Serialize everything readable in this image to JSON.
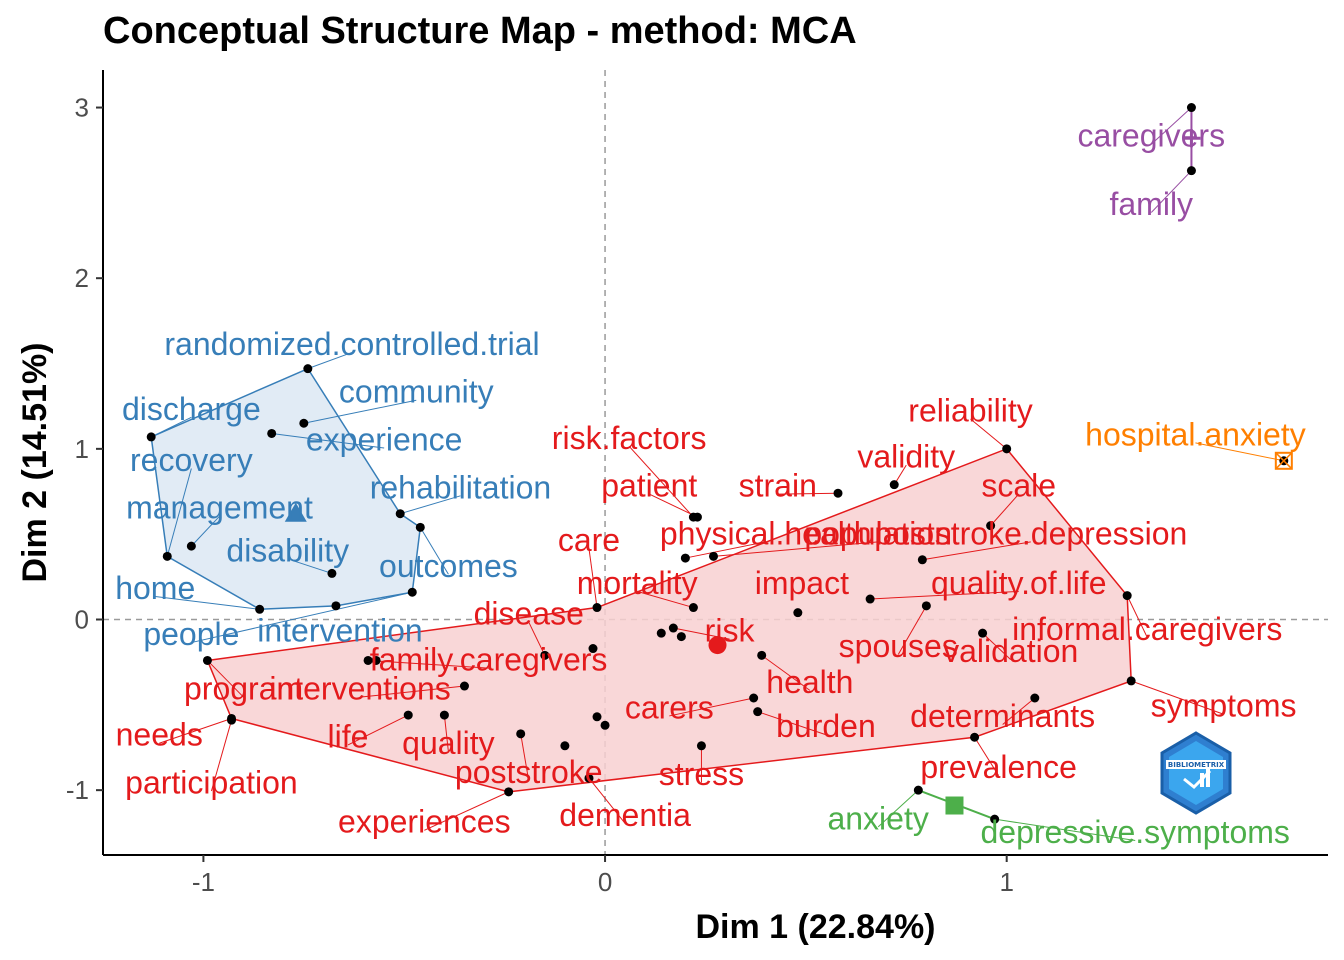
{
  "chart_data": {
    "type": "scatter",
    "title": "Conceptual Structure Map - method: MCA",
    "xlabel": "Dim 1 (22.84%)",
    "ylabel": "Dim 2 (14.51%)",
    "xlim": [
      -1.25,
      1.8
    ],
    "ylim": [
      -1.38,
      3.22
    ],
    "xticks": [
      -1,
      0,
      1
    ],
    "yticks": [
      -1,
      0,
      1,
      2,
      3
    ],
    "grid": false,
    "reference_lines": {
      "x": 0,
      "y": 0,
      "style": "dashed"
    },
    "clusters": [
      {
        "id": "blue",
        "color": "#377EB8",
        "fill": "#DCE8F3",
        "centroid": [
          -0.77,
          0.62
        ],
        "centroid_shape": "triangle",
        "hull": [
          [
            -0.74,
            1.47
          ],
          [
            -1.13,
            1.07
          ],
          [
            -1.09,
            0.37
          ],
          [
            -0.86,
            0.06
          ],
          [
            -0.67,
            0.08
          ],
          [
            -0.48,
            0.16
          ],
          [
            -0.46,
            0.54
          ],
          [
            -0.51,
            0.62
          ]
        ],
        "points": [
          {
            "x": -0.74,
            "y": 1.47,
            "label": "randomized.controlled.trial",
            "lx": -0.63,
            "ly": 1.6
          },
          {
            "x": -0.75,
            "y": 1.15,
            "label": "community",
            "lx": -0.47,
            "ly": 1.32
          },
          {
            "x": -1.13,
            "y": 1.07,
            "label": "discharge",
            "lx": -1.03,
            "ly": 1.22
          },
          {
            "x": -0.83,
            "y": 1.09,
            "label": "experience",
            "lx": -0.55,
            "ly": 1.04
          },
          {
            "x": -1.09,
            "y": 0.37,
            "label": "recovery",
            "lx": -1.03,
            "ly": 0.92
          },
          {
            "x": -0.51,
            "y": 0.62,
            "label": "rehabilitation",
            "lx": -0.36,
            "ly": 0.76
          },
          {
            "x": -1.03,
            "y": 0.43,
            "label": "management",
            "lx": -0.96,
            "ly": 0.64
          },
          {
            "x": -0.68,
            "y": 0.27,
            "label": "disability",
            "lx": -0.79,
            "ly": 0.39
          },
          {
            "x": -0.46,
            "y": 0.54,
            "label": "outcomes",
            "lx": -0.39,
            "ly": 0.3
          },
          {
            "x": -0.86,
            "y": 0.06,
            "label": "home",
            "lx": -1.12,
            "ly": 0.17
          },
          {
            "x": -0.67,
            "y": 0.08,
            "label": "intervention",
            "lx": -0.66,
            "ly": -0.08
          },
          {
            "x": -0.48,
            "y": 0.16,
            "label": "people",
            "lx": -1.03,
            "ly": -0.1
          }
        ]
      },
      {
        "id": "red",
        "color": "#E41A1C",
        "fill": "#F8D0D1",
        "centroid": [
          0.28,
          -0.15
        ],
        "centroid_shape": "circle",
        "hull": [
          [
            1.0,
            1.0
          ],
          [
            1.3,
            0.14
          ],
          [
            1.31,
            -0.36
          ],
          [
            0.92,
            -0.69
          ],
          [
            -0.24,
            -1.01
          ],
          [
            -0.93,
            -0.58
          ],
          [
            -0.99,
            -0.24
          ],
          [
            -0.02,
            0.07
          ]
        ],
        "points": [
          {
            "x": 1.0,
            "y": 1.0,
            "label": "reliability",
            "lx": 0.91,
            "ly": 1.21
          },
          {
            "x": 0.72,
            "y": 0.79,
            "label": "validity",
            "lx": 0.75,
            "ly": 0.94
          },
          {
            "x": 0.58,
            "y": 0.74,
            "label": "strain",
            "lx": 0.43,
            "ly": 0.77
          },
          {
            "x": 0.96,
            "y": 0.55,
            "label": "scale",
            "lx": 1.03,
            "ly": 0.77
          },
          {
            "x": 0.22,
            "y": 0.6,
            "label": "risk.factors",
            "lx": 0.06,
            "ly": 1.05
          },
          {
            "x": 0.23,
            "y": 0.6,
            "label": "patient",
            "lx": 0.11,
            "ly": 0.77
          },
          {
            "x": 0.2,
            "y": 0.36,
            "label": "physical.health",
            "lx": 0.4,
            "ly": 0.49
          },
          {
            "x": 0.27,
            "y": 0.37,
            "label": "population",
            "lx": 0.68,
            "ly": 0.49
          },
          {
            "x": 0.79,
            "y": 0.35,
            "label": "poststroke.depression",
            "lx": 1.06,
            "ly": 0.49
          },
          {
            "x": -0.02,
            "y": 0.07,
            "label": "care",
            "lx": -0.04,
            "ly": 0.45
          },
          {
            "x": 0.22,
            "y": 0.07,
            "label": "mortality",
            "lx": 0.08,
            "ly": 0.2
          },
          {
            "x": 0.48,
            "y": 0.04,
            "label": "impact",
            "lx": 0.49,
            "ly": 0.2
          },
          {
            "x": 0.66,
            "y": 0.12,
            "label": "quality.of.life",
            "lx": 1.03,
            "ly": 0.2
          },
          {
            "x": 0.8,
            "y": 0.08,
            "label": "spouses",
            "lx": 0.73,
            "ly": -0.17
          },
          {
            "x": 0.94,
            "y": -0.08,
            "label": "validation",
            "lx": 1.01,
            "ly": -0.2
          },
          {
            "x": 1.3,
            "y": 0.14,
            "label": "informal.caregivers",
            "lx": 1.35,
            "ly": -0.07
          },
          {
            "x": -0.15,
            "y": -0.21,
            "label": "disease",
            "lx": -0.19,
            "ly": 0.02
          },
          {
            "x": 0.17,
            "y": -0.05,
            "label": "risk",
            "lx": 0.31,
            "ly": -0.08
          },
          {
            "x": -0.59,
            "y": -0.24,
            "label": "family.caregivers",
            "lx": -0.29,
            "ly": -0.25
          },
          {
            "x": 0.39,
            "y": -0.21,
            "label": "health",
            "lx": 0.51,
            "ly": -0.38
          },
          {
            "x": -0.99,
            "y": -0.24,
            "label": "program",
            "lx": -0.9,
            "ly": -0.42
          },
          {
            "x": -0.35,
            "y": -0.39,
            "label": "interventions",
            "lx": -0.61,
            "ly": -0.42
          },
          {
            "x": 0.37,
            "y": -0.46,
            "label": "carers",
            "lx": 0.16,
            "ly": -0.53
          },
          {
            "x": 1.07,
            "y": -0.46,
            "label": "determinants",
            "lx": 0.99,
            "ly": -0.58
          },
          {
            "x": 1.31,
            "y": -0.36,
            "label": "symptoms",
            "lx": 1.54,
            "ly": -0.52
          },
          {
            "x": -0.93,
            "y": -0.58,
            "label": "needs",
            "lx": -1.11,
            "ly": -0.69
          },
          {
            "x": -0.49,
            "y": -0.56,
            "label": "life",
            "lx": -0.64,
            "ly": -0.7
          },
          {
            "x": -0.4,
            "y": -0.56,
            "label": "quality",
            "lx": -0.39,
            "ly": -0.74
          },
          {
            "x": 0.38,
            "y": -0.54,
            "label": "burden",
            "lx": 0.55,
            "ly": -0.64
          },
          {
            "x": 0.92,
            "y": -0.69,
            "label": "prevalence",
            "lx": 0.98,
            "ly": -0.88
          },
          {
            "x": -0.93,
            "y": -0.59,
            "label": "participation",
            "lx": -0.98,
            "ly": -0.97
          },
          {
            "x": -0.21,
            "y": -0.67,
            "label": "poststroke",
            "lx": -0.19,
            "ly": -0.91
          },
          {
            "x": 0.24,
            "y": -0.74,
            "label": "stress",
            "lx": 0.24,
            "ly": -0.92
          },
          {
            "x": -0.24,
            "y": -1.01,
            "label": "experiences",
            "lx": -0.45,
            "ly": -1.2
          },
          {
            "x": -0.04,
            "y": -0.93,
            "label": "dementia",
            "lx": 0.05,
            "ly": -1.16
          },
          {
            "x": -0.1,
            "y": -0.74,
            "label": "",
            "lx": null,
            "ly": null
          },
          {
            "x": -0.02,
            "y": -0.57,
            "label": "",
            "lx": null,
            "ly": null
          },
          {
            "x": 0.0,
            "y": -0.62,
            "label": "",
            "lx": null,
            "ly": null
          },
          {
            "x": -0.03,
            "y": -0.17,
            "label": "",
            "lx": null,
            "ly": null
          },
          {
            "x": 0.14,
            "y": -0.08,
            "label": "",
            "lx": null,
            "ly": null
          },
          {
            "x": 0.19,
            "y": -0.1,
            "label": "",
            "lx": null,
            "ly": null
          },
          {
            "x": -0.57,
            "y": -0.24,
            "label": "",
            "lx": null,
            "ly": null
          }
        ]
      },
      {
        "id": "purple",
        "color": "#984EA3",
        "fill": "#984EA3",
        "centroid": [
          1.46,
          2.82
        ],
        "centroid_shape": "plus",
        "hull": [
          [
            1.46,
            3.0
          ],
          [
            1.46,
            2.63
          ]
        ],
        "points": [
          {
            "x": 1.46,
            "y": 3.0,
            "label": "caregivers",
            "lx": 1.36,
            "ly": 2.82
          },
          {
            "x": 1.46,
            "y": 2.63,
            "label": "family",
            "lx": 1.36,
            "ly": 2.42
          }
        ]
      },
      {
        "id": "orange",
        "color": "#FF7F00",
        "fill": "#FF7F00",
        "centroid": [
          1.69,
          0.93
        ],
        "centroid_shape": "square-cross",
        "hull": [],
        "points": [
          {
            "x": 1.69,
            "y": 0.93,
            "label": "hospital.anxiety",
            "lx": 1.47,
            "ly": 1.07
          }
        ]
      },
      {
        "id": "green",
        "color": "#4DAF4A",
        "fill": "#4DAF4A",
        "centroid": [
          0.87,
          -1.09
        ],
        "centroid_shape": "square",
        "hull": [
          [
            0.78,
            -1.0
          ],
          [
            0.97,
            -1.17
          ]
        ],
        "points": [
          {
            "x": 0.78,
            "y": -1.0,
            "label": "anxiety",
            "lx": 0.68,
            "ly": -1.18
          },
          {
            "x": 0.97,
            "y": -1.17,
            "label": "depressive.symptoms",
            "lx": 1.32,
            "ly": -1.26
          }
        ]
      }
    ]
  },
  "logo": {
    "text": "BIBLIOMETRIX",
    "icon": "bibliometrix-logo-icon"
  }
}
